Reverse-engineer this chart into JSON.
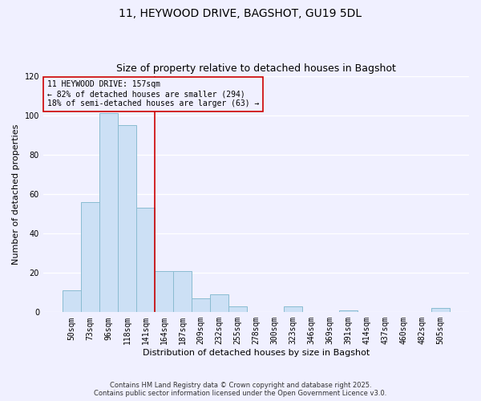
{
  "title": "11, HEYWOOD DRIVE, BAGSHOT, GU19 5DL",
  "subtitle": "Size of property relative to detached houses in Bagshot",
  "xlabel": "Distribution of detached houses by size in Bagshot",
  "ylabel": "Number of detached properties",
  "bar_labels": [
    "50sqm",
    "73sqm",
    "96sqm",
    "118sqm",
    "141sqm",
    "164sqm",
    "187sqm",
    "209sqm",
    "232sqm",
    "255sqm",
    "278sqm",
    "300sqm",
    "323sqm",
    "346sqm",
    "369sqm",
    "391sqm",
    "414sqm",
    "437sqm",
    "460sqm",
    "482sqm",
    "505sqm"
  ],
  "bar_values": [
    11,
    56,
    101,
    95,
    53,
    21,
    21,
    7,
    9,
    3,
    0,
    0,
    3,
    0,
    0,
    1,
    0,
    0,
    0,
    0,
    2
  ],
  "bar_color": "#cce0f5",
  "bar_edge_color": "#8abcd1",
  "ylim": [
    0,
    120
  ],
  "yticks": [
    0,
    20,
    40,
    60,
    80,
    100,
    120
  ],
  "vline_color": "#cc0000",
  "vline_position": 4.5,
  "annotation_title": "11 HEYWOOD DRIVE: 157sqm",
  "annotation_line1": "← 82% of detached houses are smaller (294)",
  "annotation_line2": "18% of semi-detached houses are larger (63) →",
  "footer1": "Contains HM Land Registry data © Crown copyright and database right 2025.",
  "footer2": "Contains public sector information licensed under the Open Government Licence v3.0.",
  "background_color": "#f0f0ff",
  "grid_color": "#ffffff",
  "title_fontsize": 10,
  "subtitle_fontsize": 9,
  "axis_label_fontsize": 8,
  "tick_fontsize": 7,
  "annotation_fontsize": 7,
  "footer_fontsize": 6
}
